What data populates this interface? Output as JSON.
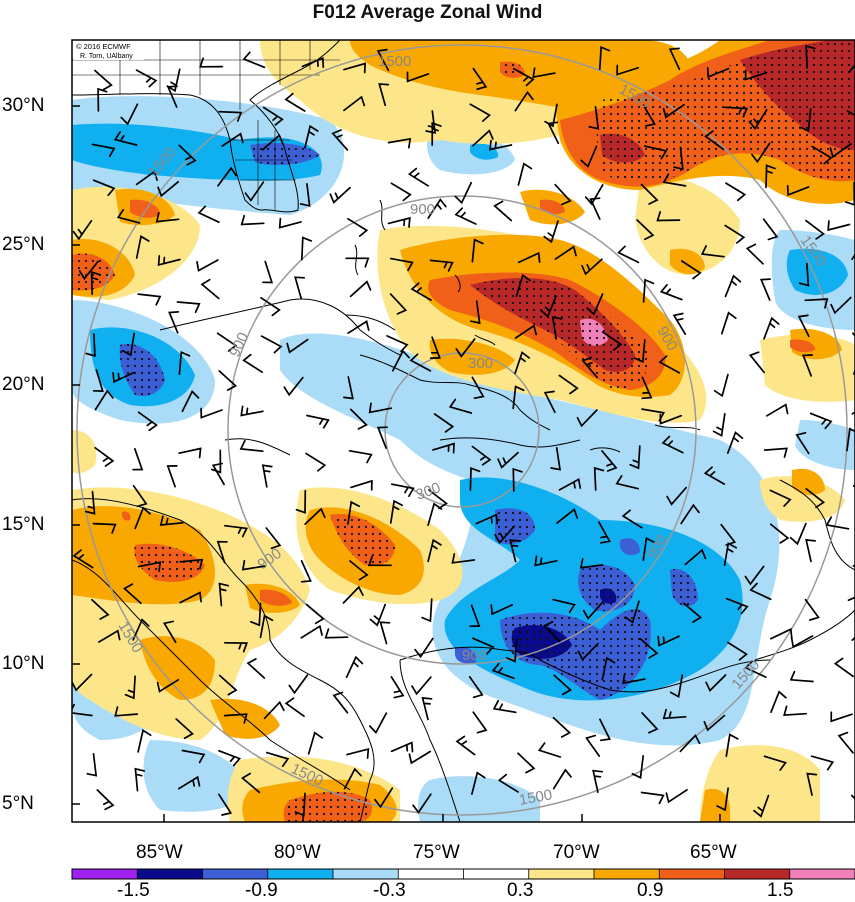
{
  "title": "F012 Average Zonal Wind",
  "credit": {
    "line1": "© 2016 ECMWF",
    "line2": "R. Torn, UAlbany"
  },
  "lat_labels": [
    "30°N",
    "25°N",
    "20°N",
    "15°N",
    "10°N",
    "5°N"
  ],
  "lon_labels": [
    "85°W",
    "80°W",
    "75°W",
    "70°W",
    "65°W"
  ],
  "range_ring_labels": [
    "300",
    "900",
    "1500"
  ],
  "colorbar": {
    "tick_labels": [
      "-1.5",
      "-0.9",
      "-0.3",
      "0.3",
      "0.9",
      "1.5"
    ],
    "colors": [
      "#a020f0",
      "#0a0a8c",
      "#3c5fd6",
      "#10b0f0",
      "#aadcf8",
      "#ffffff",
      "#ffffff",
      "#fde68a",
      "#f8a800",
      "#f06018",
      "#b82828",
      "#f080b8"
    ]
  },
  "field_colors": {
    "lightblue": "#aadcf8",
    "blue": "#10b0f0",
    "medblue": "#3c5fd6",
    "darkblue": "#0a0a8c",
    "yellow": "#fde68a",
    "orange": "#f8a800",
    "redorange": "#f06018",
    "darkred": "#b82828",
    "pink": "#f080b8"
  }
}
